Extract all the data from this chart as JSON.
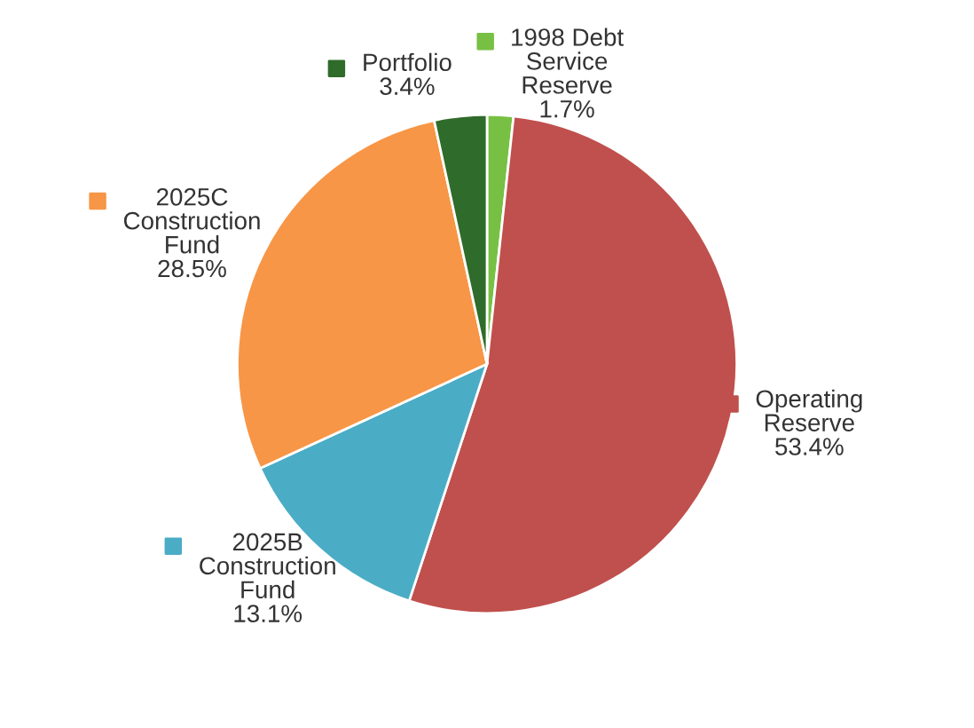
{
  "chart_data": {
    "type": "pie",
    "categories": [
      "1998 Debt\nService\nReserve",
      "Operating\nReserve",
      "2025B\nConstruction\nFund",
      "2025C\nConstruction\nFund",
      "Portfolio"
    ],
    "values": [
      1.7,
      53.4,
      13.1,
      28.5,
      3.4
    ],
    "value_labels": [
      "1.7%",
      "53.4%",
      "13.1%",
      "28.5%",
      "3.4%"
    ],
    "colors": [
      "#77c043",
      "#c0504d",
      "#4bacc6",
      "#f79646",
      "#2f6b2a"
    ],
    "legend": "left"
  }
}
